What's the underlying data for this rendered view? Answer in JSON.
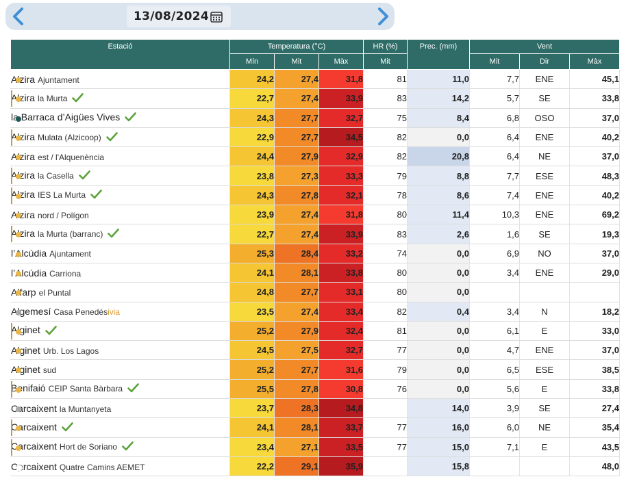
{
  "date": "13/08/2024",
  "icons": {
    "prev": "chevron-left-icon",
    "next": "chevron-right-icon",
    "calendar": "calendar-icon",
    "verified": "check-icon"
  },
  "colors": {
    "header_bg": "#2f6c67",
    "prec_bg": "#e2e9f4",
    "prec_highlight": "#c9d5e8",
    "min_scale": [
      "#f7d93c",
      "#f5c533",
      "#f4ae2e"
    ],
    "mid_scale": [
      "#f5a12e",
      "#f18a27",
      "#ee7325"
    ],
    "max_scale": [
      "#f53b30",
      "#e52a2a",
      "#cc2124",
      "#b51b1f"
    ]
  },
  "header": {
    "station": "Estació",
    "temperature": "Temperatura (°C)",
    "humidity": "HR (%)",
    "precipitation": "Prec. (mm)",
    "wind": "Vent",
    "t_min": "Mín",
    "t_mid": "Mit",
    "t_max": "Màx",
    "hr_mid": "Mit",
    "w_mid": "Mit",
    "w_dir": "Dir",
    "w_max": "Màx"
  },
  "rows": [
    {
      "name": "Alzira",
      "sub": "Ajuntament",
      "dot": "yellow",
      "mark": false,
      "check": false,
      "tmin": "24,2",
      "tmid": "27,4",
      "tmax": "31,8",
      "hr": "81",
      "prec": "11,0",
      "wmid": "7,7",
      "wdir": "ENE",
      "wmax": "45,1"
    },
    {
      "name": "Alzira",
      "sub": "la Murta",
      "dot": "yellow",
      "mark": true,
      "check": true,
      "tmin": "22,7",
      "tmid": "27,4",
      "tmax": "33,9",
      "hr": "83",
      "prec": "14,2",
      "wmid": "5,7",
      "wdir": "SE",
      "wmax": "33,8"
    },
    {
      "name": "la Barraca d’Aigües Vives",
      "sub": "",
      "dot": "teal",
      "mark": false,
      "check": true,
      "tmin": "24,3",
      "tmid": "27,7",
      "tmax": "32,7",
      "hr": "75",
      "prec": "8,4",
      "wmid": "6,8",
      "wdir": "OSO",
      "wmax": "37,0"
    },
    {
      "name": "Alzira",
      "sub": "Mulata (Alzicoop)",
      "dot": "yellow",
      "mark": true,
      "check": true,
      "tmin": "22,9",
      "tmid": "27,7",
      "tmax": "34,5",
      "hr": "82",
      "prec": "0,0",
      "wmid": "6,4",
      "wdir": "ENE",
      "wmax": "40,2"
    },
    {
      "name": "Alzira",
      "sub": "est / l'Alquenència",
      "dot": "yellow",
      "mark": false,
      "check": false,
      "tmin": "24,4",
      "tmid": "27,9",
      "tmax": "32,9",
      "hr": "82",
      "prec": "20,8",
      "wmid": "6,4",
      "wdir": "NE",
      "wmax": "37,0"
    },
    {
      "name": "Alzira",
      "sub": "la Casella",
      "dot": "yellow",
      "mark": true,
      "check": true,
      "tmin": "23,8",
      "tmid": "27,3",
      "tmax": "33,3",
      "hr": "79",
      "prec": "8,8",
      "wmid": "7,7",
      "wdir": "ESE",
      "wmax": "48,3"
    },
    {
      "name": "Alzira",
      "sub": "IES La Murta",
      "dot": "yellow",
      "mark": true,
      "check": true,
      "tmin": "24,3",
      "tmid": "27,8",
      "tmax": "32,1",
      "hr": "78",
      "prec": "8,6",
      "wmid": "7,4",
      "wdir": "ENE",
      "wmax": "40,2"
    },
    {
      "name": "Alzira",
      "sub": "nord / Polígon",
      "dot": "yellow",
      "mark": false,
      "check": false,
      "tmin": "23,9",
      "tmid": "27,4",
      "tmax": "31,8",
      "hr": "80",
      "prec": "11,4",
      "wmid": "10,3",
      "wdir": "ENE",
      "wmax": "69,2"
    },
    {
      "name": "Alzira",
      "sub": "la Murta (barranc)",
      "dot": "yellow",
      "mark": true,
      "check": true,
      "tmin": "22,7",
      "tmid": "27,4",
      "tmax": "33,9",
      "hr": "83",
      "prec": "2,6",
      "wmid": "1,6",
      "wdir": "SE",
      "wmax": "19,3"
    },
    {
      "name": "l’Alcúdia",
      "sub": "Ajuntament",
      "dot": "yellow",
      "mark": false,
      "check": false,
      "tmin": "25,3",
      "tmid": "28,4",
      "tmax": "33,2",
      "hr": "74",
      "prec": "0,0",
      "wmid": "6,9",
      "wdir": "NO",
      "wmax": "37,0"
    },
    {
      "name": "l’Alcúdia",
      "sub": "Carriona",
      "dot": "yellow",
      "mark": false,
      "check": false,
      "tmin": "24,1",
      "tmid": "28,1",
      "tmax": "33,8",
      "hr": "80",
      "prec": "0,0",
      "wmid": "3,4",
      "wdir": "ENE",
      "wmax": "29,0"
    },
    {
      "name": "Alfarp",
      "sub": "el Puntal",
      "dot": "yellow",
      "mark": false,
      "check": false,
      "tmin": "24,8",
      "tmid": "27,7",
      "tmax": "33,1",
      "hr": "80",
      "prec": "0,0",
      "wmid": "",
      "wdir": "",
      "wmax": ""
    },
    {
      "name": "Algemesí",
      "sub": "Casa Penedés",
      "sub2": "ivia",
      "dot": "gray",
      "mark": false,
      "check": false,
      "tmin": "23,5",
      "tmid": "27,4",
      "tmax": "33,4",
      "hr": "82",
      "prec": "0,4",
      "wmid": "3,4",
      "wdir": "N",
      "wmax": "18,2"
    },
    {
      "name": "Alginet",
      "sub": "",
      "dot": "yellow",
      "mark": true,
      "check": true,
      "tmin": "25,2",
      "tmid": "27,9",
      "tmax": "32,4",
      "hr": "81",
      "prec": "0,0",
      "wmid": "6,1",
      "wdir": "E",
      "wmax": "33,0"
    },
    {
      "name": "Alginet",
      "sub": "Urb. Los Lagos",
      "dot": "yellow",
      "mark": false,
      "check": false,
      "tmin": "24,5",
      "tmid": "27,5",
      "tmax": "32,7",
      "hr": "77",
      "prec": "0,0",
      "wmid": "4,7",
      "wdir": "ENE",
      "wmax": "37,0"
    },
    {
      "name": "Alginet",
      "sub": "sud",
      "dot": "yellow",
      "mark": false,
      "check": false,
      "tmin": "25,2",
      "tmid": "27,7",
      "tmax": "31,6",
      "hr": "79",
      "prec": "0,0",
      "wmid": "6,5",
      "wdir": "ESE",
      "wmax": "38,5"
    },
    {
      "name": "Benifaió",
      "sub": "CEIP Santa Bàrbara",
      "dot": "yellow",
      "mark": true,
      "check": true,
      "tmin": "25,5",
      "tmid": "27,8",
      "tmax": "30,8",
      "hr": "76",
      "prec": "0,0",
      "wmid": "5,6",
      "wdir": "E",
      "wmax": "33,8"
    },
    {
      "name": "Carcaixent",
      "sub": "la Muntanyeta",
      "dot": "gray",
      "mark": false,
      "check": false,
      "tmin": "23,7",
      "tmid": "28,3",
      "tmax": "34,8",
      "hr": "",
      "prec": "14,0",
      "wmid": "3,9",
      "wdir": "SE",
      "wmax": "27,4"
    },
    {
      "name": "Carcaixent",
      "sub": "",
      "dot": "yellow",
      "mark": true,
      "check": true,
      "tmin": "24,1",
      "tmid": "28,1",
      "tmax": "33,7",
      "hr": "77",
      "prec": "16,0",
      "wmid": "6,0",
      "wdir": "NE",
      "wmax": "35,4"
    },
    {
      "name": "Carcaixent",
      "sub": "Hort de Soriano",
      "dot": "yellow",
      "mark": true,
      "check": true,
      "tmin": "23,4",
      "tmid": "27,1",
      "tmax": "33,5",
      "hr": "77",
      "prec": "15,0",
      "wmid": "7,1",
      "wdir": "E",
      "wmax": "43,5"
    },
    {
      "name": "Carcaixent",
      "sub": "Quatre Camins AEMET",
      "dot": "hollow",
      "mark": false,
      "check": false,
      "tmin": "22,2",
      "tmid": "29,1",
      "tmax": "35,9",
      "hr": "",
      "prec": "15,8",
      "wmid": "",
      "wdir": "",
      "wmax": "48,0"
    }
  ]
}
